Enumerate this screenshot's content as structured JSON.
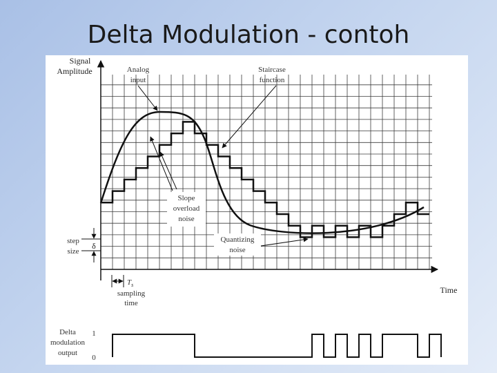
{
  "slide": {
    "title": "Delta Modulation - contoh"
  },
  "diagram": {
    "y_axis_label": [
      "Signal",
      "Amplitude"
    ],
    "x_axis_label": "Time",
    "annotations": {
      "analog_input": [
        "Analog",
        "input"
      ],
      "staircase_function": [
        "Staircase",
        "function"
      ],
      "slope_overload_noise": [
        "Slope",
        "overload",
        "noise"
      ],
      "quantizing_noise": [
        "Quantizing",
        "noise"
      ],
      "step_size": [
        "step",
        "size"
      ],
      "delta_symbol": "δ",
      "sampling_period_symbol": "T",
      "sampling_period_subscript": "s",
      "sampling_time": [
        "sampling",
        "time"
      ]
    },
    "output": {
      "label": [
        "Delta",
        "modulation",
        "output"
      ],
      "level_high": "1",
      "level_low": "0",
      "bits": [
        1,
        1,
        1,
        1,
        1,
        1,
        1,
        0,
        0,
        0,
        0,
        0,
        0,
        0,
        0,
        0,
        0,
        1,
        0,
        1,
        0,
        1,
        0,
        1,
        1,
        1,
        0,
        1
      ]
    },
    "staircase_levels": [
      1,
      2,
      3,
      4,
      5,
      6,
      7,
      8,
      7,
      6,
      5,
      4,
      3,
      2,
      1,
      0,
      -1,
      -2,
      -1,
      -2,
      -1,
      -2,
      -1,
      -2,
      -1,
      0,
      1,
      0
    ]
  }
}
